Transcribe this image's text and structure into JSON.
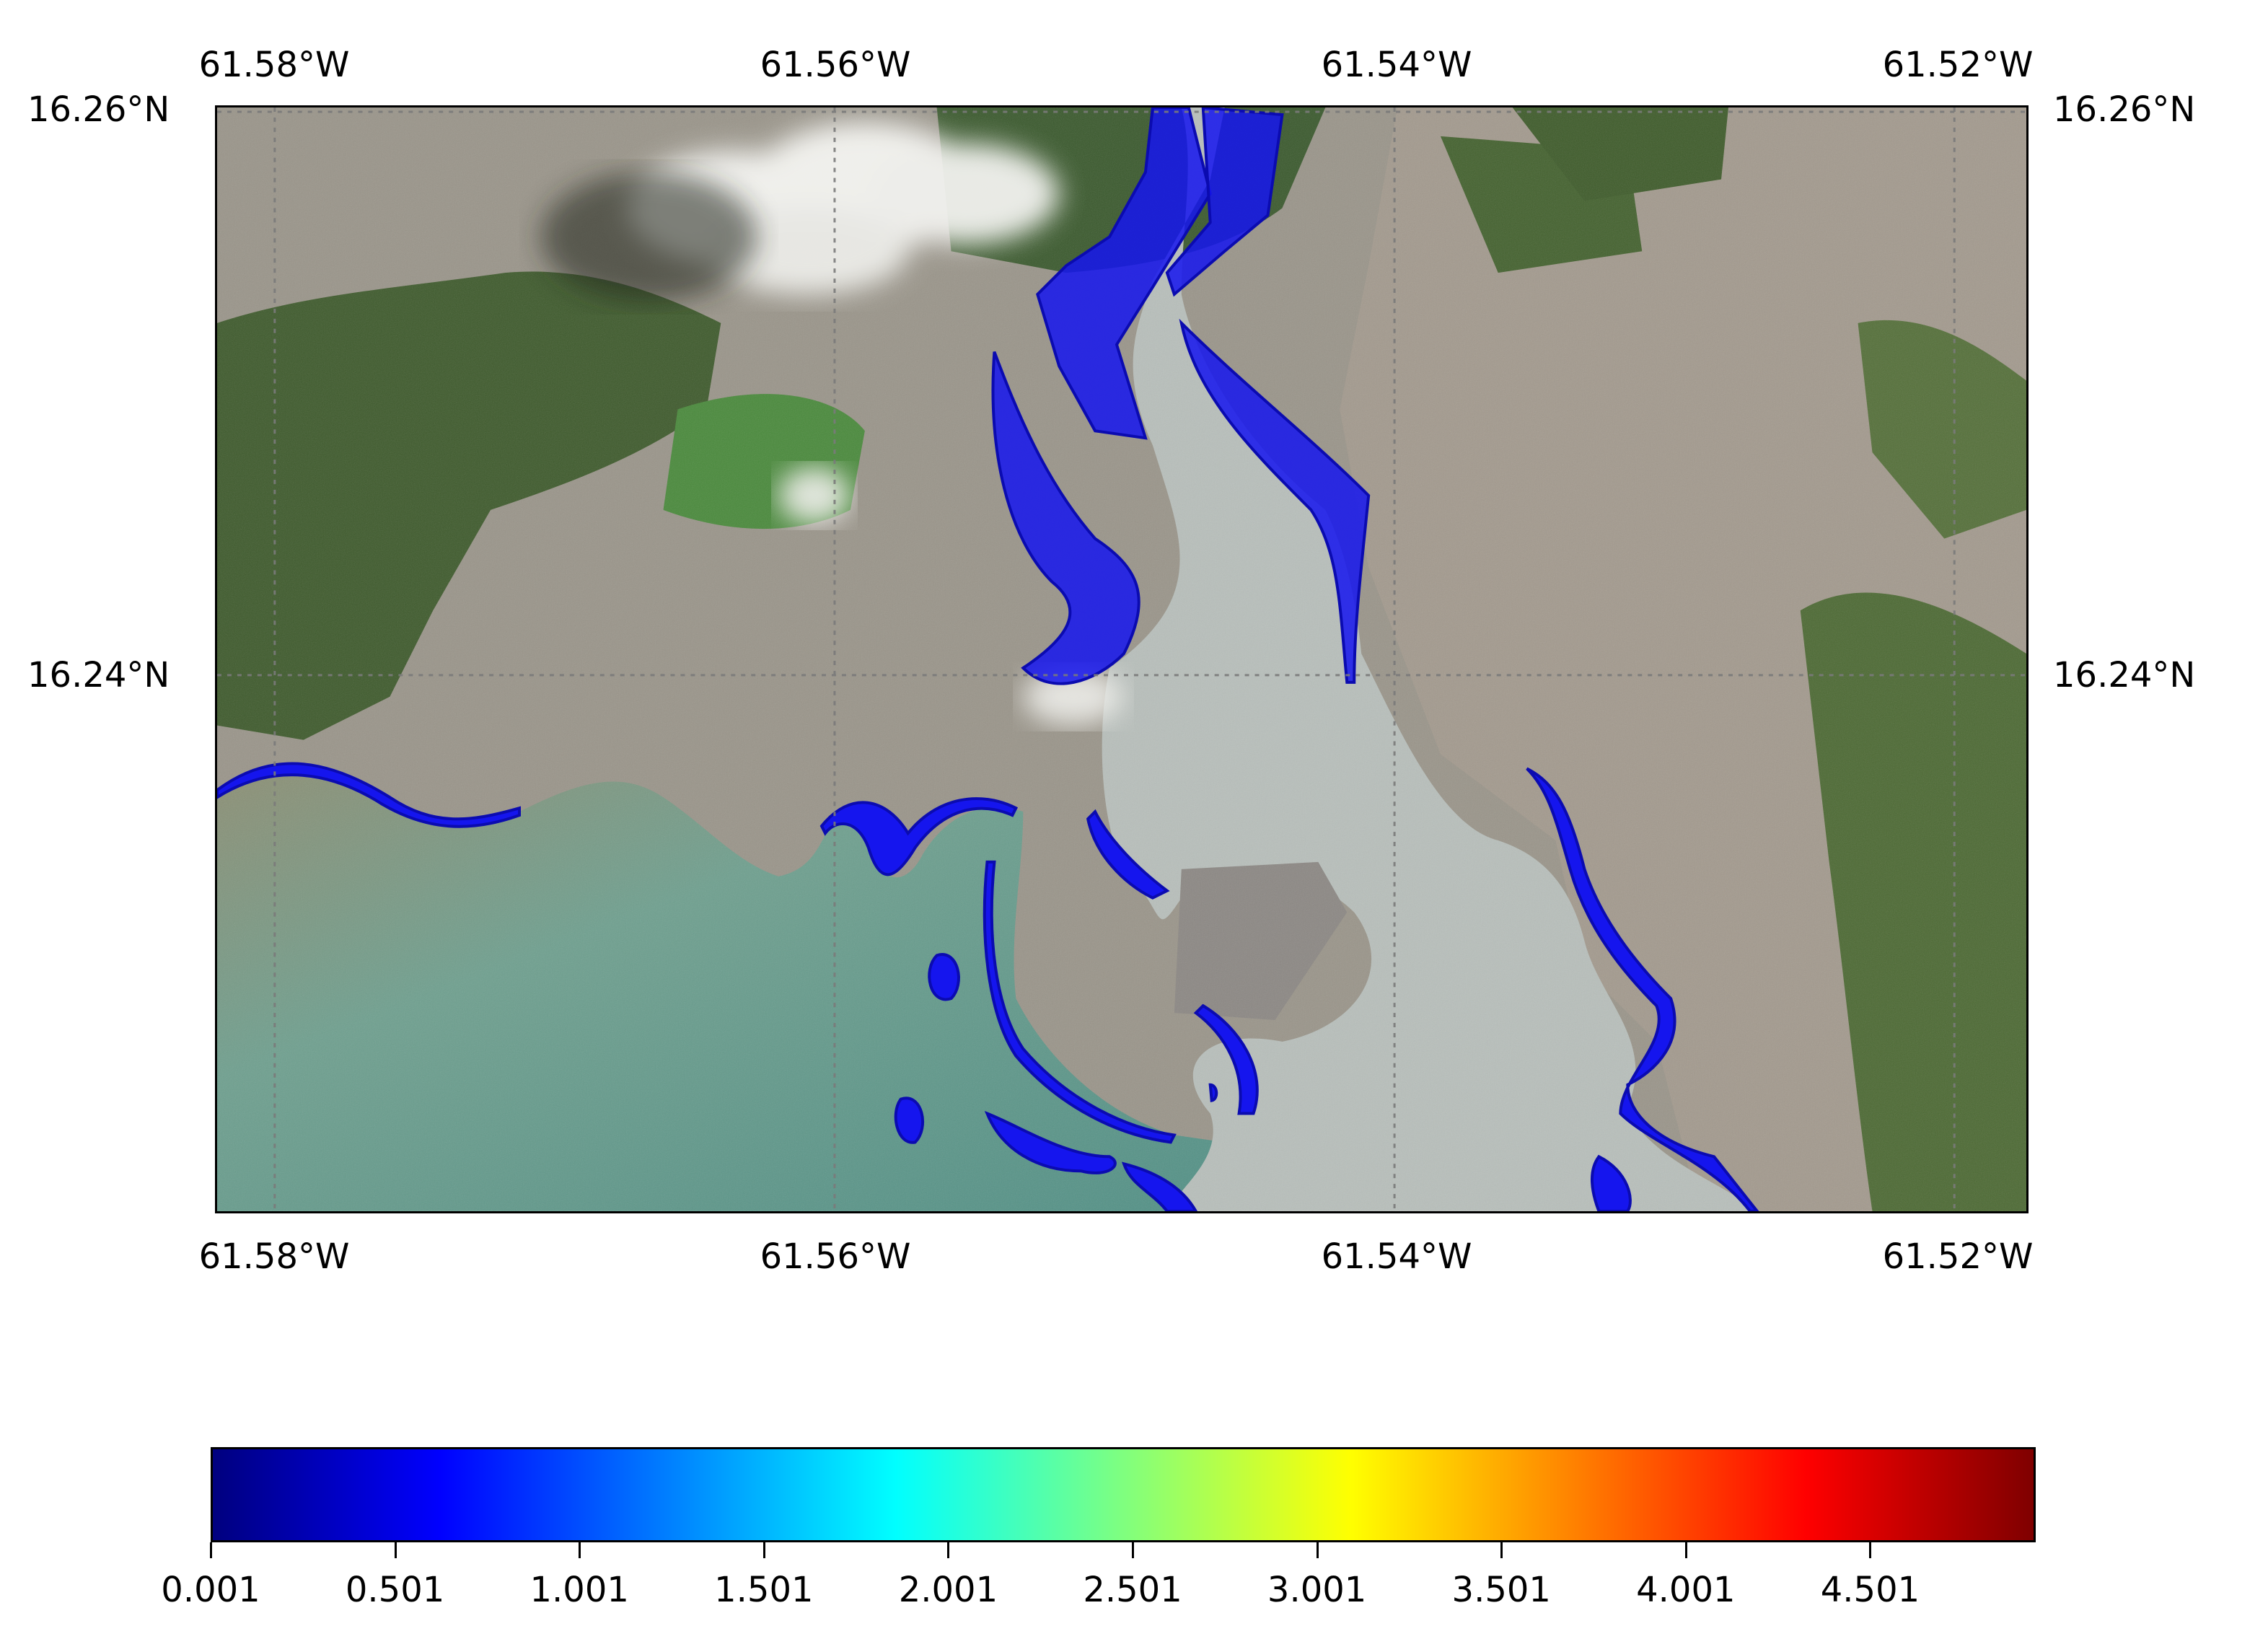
{
  "map": {
    "longitude_labels": [
      "61.58°W",
      "61.56°W",
      "61.54°W",
      "61.52°W"
    ],
    "latitude_labels": [
      "16.26°N",
      "16.24°N"
    ],
    "colors": {
      "sea_shallow": "#5f9a8c",
      "sea_murky": "#8a8f78",
      "harbor_water": "#b9c0bc",
      "urban": "#9e978c",
      "vegetation": "#3e5a2c",
      "flood": "#1414ff",
      "cloud": "#f2f2f0"
    }
  },
  "colorbar": {
    "colormap": "jet",
    "range": [
      0.001,
      4.95
    ],
    "ticks": [
      "0.001",
      "0.501",
      "1.001",
      "1.501",
      "2.001",
      "2.501",
      "3.001",
      "3.501",
      "4.001",
      "4.501"
    ]
  }
}
